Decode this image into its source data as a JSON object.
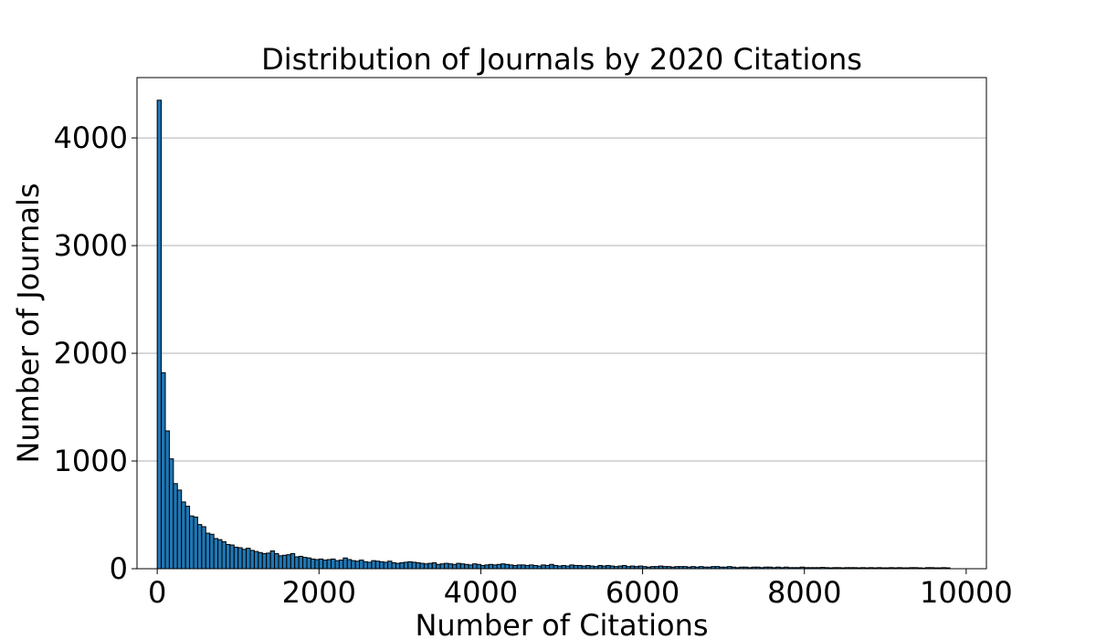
{
  "chart_data": {
    "type": "bar",
    "title": "Distribution of Journals by 2020 Citations",
    "xlabel": "Number of Citations",
    "ylabel": "Number of Journals",
    "xlim": [
      -250,
      10250
    ],
    "ylim": [
      0,
      4560
    ],
    "xticks": [
      0,
      2000,
      4000,
      6000,
      8000,
      10000
    ],
    "yticks": [
      0,
      1000,
      2000,
      3000,
      4000
    ],
    "grid": "y",
    "bar_color": "#1f77b4",
    "bar_edge_color": "#000000",
    "bin_width": 50,
    "bin_start": 0,
    "values": [
      4350,
      1820,
      1280,
      1020,
      790,
      730,
      620,
      580,
      490,
      480,
      410,
      390,
      330,
      320,
      280,
      270,
      250,
      225,
      220,
      200,
      195,
      180,
      190,
      170,
      160,
      150,
      140,
      145,
      165,
      140,
      120,
      125,
      130,
      140,
      110,
      115,
      105,
      100,
      90,
      85,
      90,
      80,
      85,
      90,
      75,
      80,
      100,
      85,
      75,
      70,
      80,
      65,
      60,
      75,
      70,
      65,
      60,
      70,
      55,
      50,
      55,
      60,
      65,
      60,
      55,
      50,
      45,
      50,
      55,
      40,
      45,
      50,
      45,
      40,
      50,
      45,
      40,
      35,
      45,
      40,
      30,
      35,
      40,
      35,
      40,
      45,
      40,
      35,
      30,
      35,
      35,
      30,
      35,
      30,
      25,
      35,
      30,
      40,
      30,
      25,
      30,
      25,
      35,
      30,
      30,
      25,
      30,
      25,
      20,
      30,
      25,
      30,
      25,
      20,
      25,
      30,
      20,
      25,
      20,
      25,
      20,
      15,
      20,
      20,
      25,
      20,
      20,
      15,
      20,
      20,
      20,
      15,
      20,
      15,
      20,
      15,
      15,
      20,
      20,
      15,
      15,
      20,
      15,
      10,
      15,
      15,
      10,
      15,
      15,
      10,
      15,
      15,
      10,
      15,
      10,
      15,
      10,
      10,
      10,
      15,
      10,
      10,
      10,
      10,
      12,
      10,
      8,
      10,
      10,
      8,
      10,
      10,
      10,
      8,
      10,
      8,
      10,
      8,
      10,
      8,
      8,
      10,
      8,
      10,
      8,
      8,
      10,
      10,
      8,
      6,
      10,
      10,
      8,
      8,
      10,
      8
    ]
  }
}
